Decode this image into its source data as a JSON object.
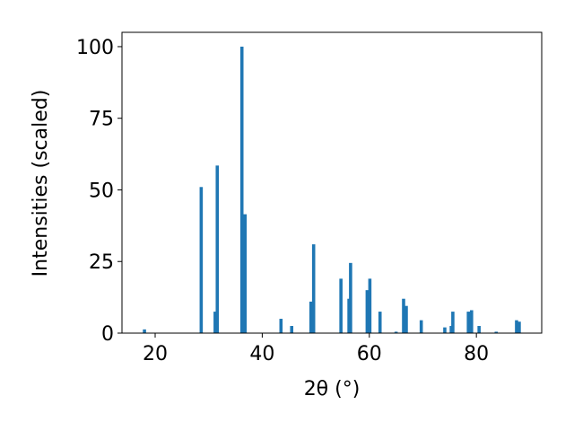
{
  "chart_data": {
    "type": "bar",
    "xlabel": "2θ (°)",
    "ylabel": "Intensities (scaled)",
    "x": [
      18.0,
      28.6,
      31.2,
      31.6,
      36.2,
      36.8,
      43.5,
      45.5,
      49.1,
      49.6,
      54.7,
      56.2,
      56.5,
      59.6,
      60.1,
      62.0,
      65.0,
      66.4,
      66.9,
      69.7,
      74.1,
      75.3,
      75.6,
      78.5,
      79.1,
      80.5,
      83.7,
      87.5,
      88.0
    ],
    "values": [
      1.3,
      51,
      7.5,
      58.5,
      100,
      41.5,
      5,
      2.5,
      11,
      31,
      19,
      12,
      24.5,
      15,
      19,
      7.5,
      0.5,
      12,
      9.5,
      4.5,
      2,
      2.5,
      7.5,
      7.5,
      8,
      2.5,
      0.5,
      4.5,
      4
    ],
    "color": "#1f77b4",
    "xlim": [
      13.8,
      92.2
    ],
    "xticks": [
      20,
      40,
      60,
      80
    ],
    "ylim": [
      0,
      105
    ],
    "yticks": [
      0,
      25,
      50,
      75,
      100
    ]
  }
}
